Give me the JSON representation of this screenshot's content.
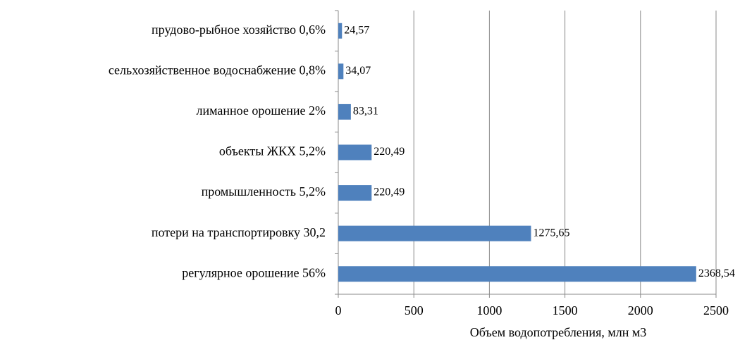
{
  "chart_data": {
    "type": "bar",
    "orientation": "horizontal",
    "categories": [
      "прудово-рыбное хозяйство 0,6%",
      "сельхозяйственное водоснабжение 0,8%",
      "лиманное орошение 2%",
      "объекты ЖКХ 5,2%",
      "промышленность 5,2%",
      "потери на транспортировку 30,2",
      "регулярное орошение 56%"
    ],
    "values": [
      24.57,
      34.07,
      83.31,
      220.49,
      220.49,
      1275.65,
      2368.54
    ],
    "value_labels": [
      "24,57",
      "34,07",
      "83,31",
      "220,49",
      "220,49",
      "1275,65",
      "2368,54"
    ],
    "color": "#4f81bd",
    "xlabel": "Объем водопотребления, млн м3",
    "xlim": [
      0,
      2500
    ],
    "xticks": [
      0,
      500,
      1000,
      1500,
      2000,
      2500
    ],
    "grid": true
  }
}
